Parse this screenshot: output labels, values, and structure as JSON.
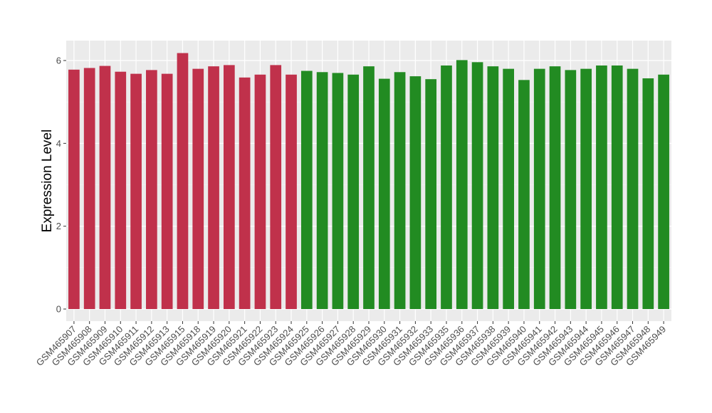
{
  "chart_data": {
    "type": "bar",
    "title": "",
    "xlabel": "",
    "ylabel": "Expression Level",
    "ylim": [
      0,
      6.5
    ],
    "yticks": [
      0,
      2,
      4,
      6
    ],
    "grid": true,
    "legend": "none",
    "colors": {
      "panel_background": "#ebebeb",
      "grid_major": "#ffffff",
      "grid_minor": "#f5f5f5",
      "group_1": "#c0314b",
      "group_2": "#228b22",
      "axis_text": "#4d4d4d"
    },
    "categories": [
      "GSM465907",
      "GSM465908",
      "GSM465909",
      "GSM465910",
      "GSM465911",
      "GSM465912",
      "GSM465913",
      "GSM465915",
      "GSM465918",
      "GSM465919",
      "GSM465920",
      "GSM465921",
      "GSM465922",
      "GSM465923",
      "GSM465924",
      "GSM465925",
      "GSM465926",
      "GSM465927",
      "GSM465928",
      "GSM465929",
      "GSM465930",
      "GSM465931",
      "GSM465932",
      "GSM465933",
      "GSM465935",
      "GSM465936",
      "GSM465937",
      "GSM465938",
      "GSM465939",
      "GSM465940",
      "GSM465941",
      "GSM465942",
      "GSM465943",
      "GSM465944",
      "GSM465945",
      "GSM465946",
      "GSM465947",
      "GSM465948",
      "GSM465949"
    ],
    "values": [
      5.78,
      5.82,
      5.87,
      5.73,
      5.68,
      5.77,
      5.68,
      6.18,
      5.8,
      5.86,
      5.89,
      5.59,
      5.66,
      5.89,
      5.66,
      5.75,
      5.72,
      5.7,
      5.66,
      5.86,
      5.56,
      5.72,
      5.62,
      5.55,
      5.88,
      6.01,
      5.96,
      5.86,
      5.8,
      5.53,
      5.8,
      5.86,
      5.77,
      5.8,
      5.88,
      5.88,
      5.8,
      5.57,
      5.66
    ],
    "groups": [
      1,
      1,
      1,
      1,
      1,
      1,
      1,
      1,
      1,
      1,
      1,
      1,
      1,
      1,
      1,
      2,
      2,
      2,
      2,
      2,
      2,
      2,
      2,
      2,
      2,
      2,
      2,
      2,
      2,
      2,
      2,
      2,
      2,
      2,
      2,
      2,
      2,
      2,
      2
    ]
  }
}
